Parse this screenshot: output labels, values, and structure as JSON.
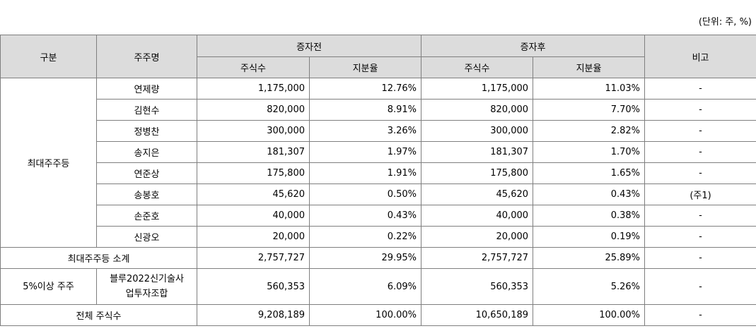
{
  "unit_note": "(단위: 주, %)",
  "headers": {
    "category": "구분",
    "shareholder": "주주명",
    "before": "증자전",
    "after": "증자후",
    "note": "비고",
    "shares": "주식수",
    "ratio": "지분율"
  },
  "group_label": "최대주주등",
  "rows": [
    {
      "name": "연제량",
      "before_shares": "1,175,000",
      "before_ratio": "12.76%",
      "after_shares": "1,175,000",
      "after_ratio": "11.03%",
      "note": "-"
    },
    {
      "name": "김현수",
      "before_shares": "820,000",
      "before_ratio": "8.91%",
      "after_shares": "820,000",
      "after_ratio": "7.70%",
      "note": "-"
    },
    {
      "name": "정병찬",
      "before_shares": "300,000",
      "before_ratio": "3.26%",
      "after_shares": "300,000",
      "after_ratio": "2.82%",
      "note": "-"
    },
    {
      "name": "송지은",
      "before_shares": "181,307",
      "before_ratio": "1.97%",
      "after_shares": "181,307",
      "after_ratio": "1.70%",
      "note": "-"
    },
    {
      "name": "연준상",
      "before_shares": "175,800",
      "before_ratio": "1.91%",
      "after_shares": "175,800",
      "after_ratio": "1.65%",
      "note": "-"
    },
    {
      "name": "송봉호",
      "before_shares": "45,620",
      "before_ratio": "0.50%",
      "after_shares": "45,620",
      "after_ratio": "0.43%",
      "note": "(주1)"
    },
    {
      "name": "손준호",
      "before_shares": "40,000",
      "before_ratio": "0.43%",
      "after_shares": "40,000",
      "after_ratio": "0.38%",
      "note": "-"
    },
    {
      "name": "신광오",
      "before_shares": "20,000",
      "before_ratio": "0.22%",
      "after_shares": "20,000",
      "after_ratio": "0.19%",
      "note": "-"
    }
  ],
  "subtotal": {
    "label": "최대주주등 소계",
    "before_shares": "2,757,727",
    "before_ratio": "29.95%",
    "after_shares": "2,757,727",
    "after_ratio": "25.89%",
    "note": "-"
  },
  "five_percent": {
    "category": "5%이상 주주",
    "name_line1": "블루2022신기술사",
    "name_line2": "업투자조합",
    "before_shares": "560,353",
    "before_ratio": "6.09%",
    "after_shares": "560,353",
    "after_ratio": "5.26%",
    "note": "-"
  },
  "total": {
    "label": "전체 주식수",
    "before_shares": "9,208,189",
    "before_ratio": "100.00%",
    "after_shares": "10,650,189",
    "after_ratio": "100.00%",
    "note": "-"
  }
}
